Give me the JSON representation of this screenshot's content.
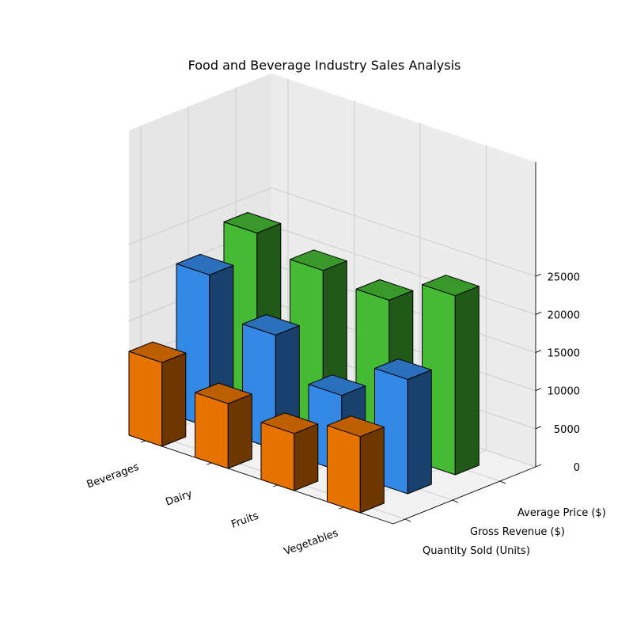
{
  "chart_data": {
    "type": "bar",
    "title": "Food and Beverage Industry Sales Analysis",
    "categories": [
      "Beverages",
      "Dairy",
      "Fruits",
      "Vegetables"
    ],
    "series": [
      {
        "name": "Quantity Sold (Units)",
        "values": [
          11000,
          8500,
          7500,
          10000
        ],
        "color": "#E67300"
      },
      {
        "name": "Gross Revenue ($)",
        "values": [
          20000,
          15000,
          10000,
          15000
        ],
        "color": "#3388E6"
      },
      {
        "name": "Average Price ($)",
        "values": [
          23000,
          21000,
          20000,
          23500
        ],
        "color": "#44BB33"
      }
    ],
    "zlim": [
      0,
      25000
    ],
    "zticks": [
      0,
      5000,
      10000,
      15000,
      20000,
      25000
    ],
    "grid": true
  }
}
